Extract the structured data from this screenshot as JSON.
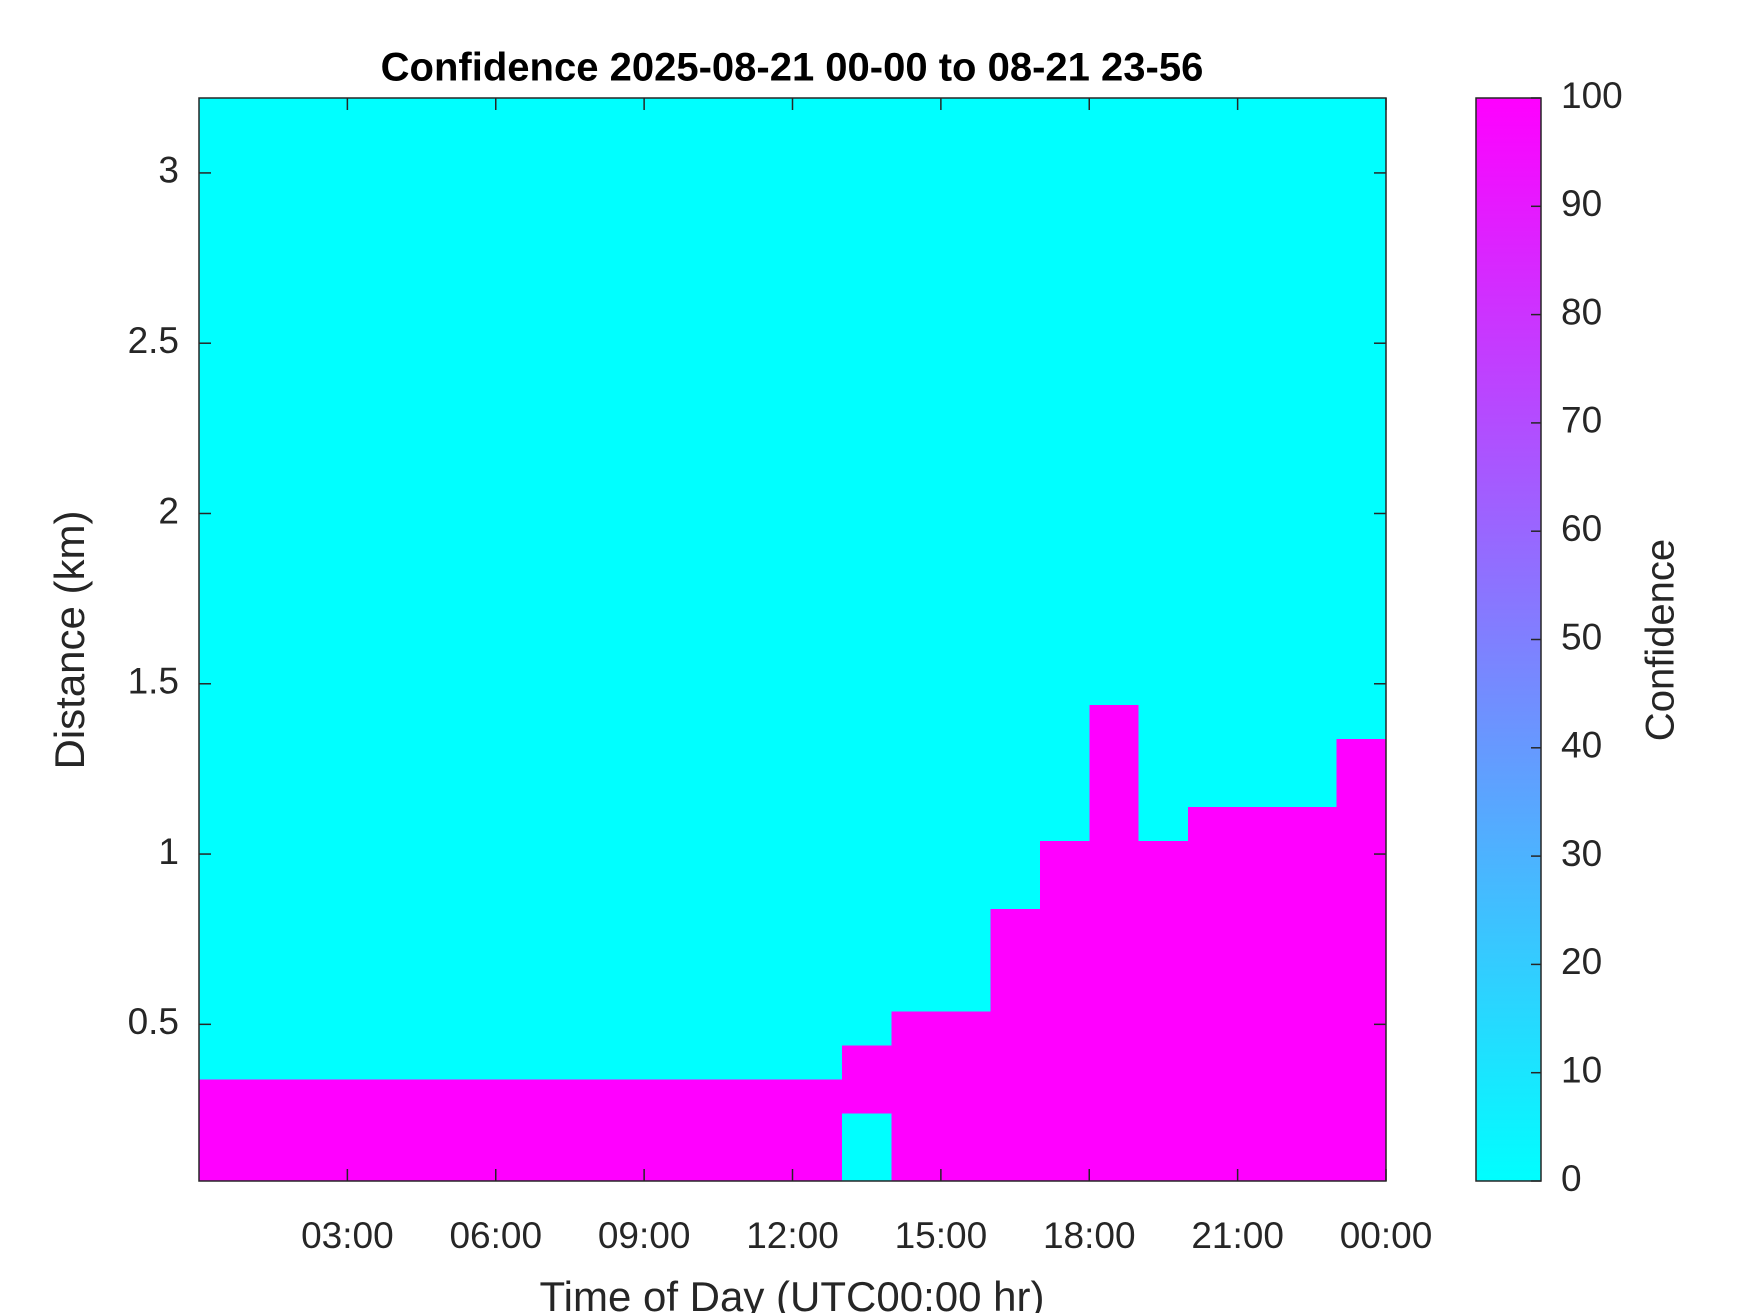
{
  "chart_data": {
    "type": "heatmap",
    "title": "Confidence 2025-08-21 00-00 to 08-21 23-56",
    "xlabel": "Time of Day (UTC00:00 hr)",
    "ylabel": "Distance (km)",
    "colorbar_label": "Confidence",
    "colormap": [
      "#00ffff",
      "#ff00ff"
    ],
    "zlim": [
      0,
      100
    ],
    "zticks": [
      0,
      10,
      20,
      30,
      40,
      50,
      60,
      70,
      80,
      90,
      100
    ],
    "xlim": [
      0,
      24
    ],
    "xticks": [
      {
        "value": 3,
        "label": "03:00"
      },
      {
        "value": 6,
        "label": "06:00"
      },
      {
        "value": 9,
        "label": "09:00"
      },
      {
        "value": 12,
        "label": "12:00"
      },
      {
        "value": 15,
        "label": "15:00"
      },
      {
        "value": 18,
        "label": "18:00"
      },
      {
        "value": 21,
        "label": "21:00"
      },
      {
        "value": 24,
        "label": "00:00"
      }
    ],
    "ylim": [
      0.04,
      3.22
    ],
    "yticks": [
      0.5,
      1,
      1.5,
      2,
      2.5,
      3
    ],
    "x": [
      0.5,
      1.5,
      2.5,
      3.5,
      4.5,
      5.5,
      6.5,
      7.5,
      8.5,
      9.5,
      10.5,
      11.5,
      12.5,
      13.5,
      14.5,
      15.5,
      16.5,
      17.5,
      18.5,
      19.5,
      20.5,
      21.5,
      22.5,
      23.5
    ],
    "y": [
      0.09,
      0.19,
      0.29,
      0.39,
      0.49,
      0.59,
      0.69,
      0.79,
      0.89,
      0.99,
      1.09,
      1.19,
      1.29,
      1.39,
      1.49,
      1.59,
      1.69,
      1.79,
      1.89,
      1.99,
      2.09,
      2.19,
      2.29,
      2.39,
      2.49,
      2.59,
      2.69,
      2.79,
      2.89,
      2.99,
      3.09,
      3.19
    ],
    "values": [
      [
        100,
        100,
        100,
        100,
        100,
        100,
        100,
        100,
        100,
        100,
        100,
        100,
        100,
        0,
        100,
        100,
        100,
        100,
        100,
        100,
        100,
        100,
        100,
        100
      ],
      [
        100,
        100,
        100,
        100,
        100,
        100,
        100,
        100,
        100,
        100,
        100,
        100,
        100,
        0,
        100,
        100,
        100,
        100,
        100,
        100,
        100,
        100,
        100,
        100
      ],
      [
        100,
        100,
        100,
        100,
        100,
        100,
        100,
        100,
        100,
        100,
        100,
        100,
        100,
        100,
        100,
        100,
        100,
        100,
        100,
        100,
        100,
        100,
        100,
        100
      ],
      [
        0,
        0,
        0,
        0,
        0,
        0,
        0,
        0,
        0,
        0,
        0,
        0,
        0,
        100,
        100,
        100,
        100,
        100,
        100,
        100,
        100,
        100,
        100,
        100
      ],
      [
        0,
        0,
        0,
        0,
        0,
        0,
        0,
        0,
        0,
        0,
        0,
        0,
        0,
        0,
        100,
        100,
        100,
        100,
        100,
        100,
        100,
        100,
        100,
        100
      ],
      [
        0,
        0,
        0,
        0,
        0,
        0,
        0,
        0,
        0,
        0,
        0,
        0,
        0,
        0,
        0,
        0,
        100,
        100,
        100,
        100,
        100,
        100,
        100,
        100
      ],
      [
        0,
        0,
        0,
        0,
        0,
        0,
        0,
        0,
        0,
        0,
        0,
        0,
        0,
        0,
        0,
        0,
        100,
        100,
        100,
        100,
        100,
        100,
        100,
        100
      ],
      [
        0,
        0,
        0,
        0,
        0,
        0,
        0,
        0,
        0,
        0,
        0,
        0,
        0,
        0,
        0,
        0,
        100,
        100,
        100,
        100,
        100,
        100,
        100,
        100
      ],
      [
        0,
        0,
        0,
        0,
        0,
        0,
        0,
        0,
        0,
        0,
        0,
        0,
        0,
        0,
        0,
        0,
        0,
        100,
        100,
        100,
        100,
        100,
        100,
        100
      ],
      [
        0,
        0,
        0,
        0,
        0,
        0,
        0,
        0,
        0,
        0,
        0,
        0,
        0,
        0,
        0,
        0,
        0,
        100,
        100,
        100,
        100,
        100,
        100,
        100
      ],
      [
        0,
        0,
        0,
        0,
        0,
        0,
        0,
        0,
        0,
        0,
        0,
        0,
        0,
        0,
        0,
        0,
        0,
        0,
        100,
        0,
        100,
        100,
        100,
        100
      ],
      [
        0,
        0,
        0,
        0,
        0,
        0,
        0,
        0,
        0,
        0,
        0,
        0,
        0,
        0,
        0,
        0,
        0,
        0,
        100,
        0,
        0,
        0,
        0,
        100
      ],
      [
        0,
        0,
        0,
        0,
        0,
        0,
        0,
        0,
        0,
        0,
        0,
        0,
        0,
        0,
        0,
        0,
        0,
        0,
        100,
        0,
        0,
        0,
        0,
        100
      ],
      [
        0,
        0,
        0,
        0,
        0,
        0,
        0,
        0,
        0,
        0,
        0,
        0,
        0,
        0,
        0,
        0,
        0,
        0,
        100,
        0,
        0,
        0,
        0,
        0
      ],
      [
        0,
        0,
        0,
        0,
        0,
        0,
        0,
        0,
        0,
        0,
        0,
        0,
        0,
        0,
        0,
        0,
        0,
        0,
        0,
        0,
        0,
        0,
        0,
        0
      ],
      [
        0,
        0,
        0,
        0,
        0,
        0,
        0,
        0,
        0,
        0,
        0,
        0,
        0,
        0,
        0,
        0,
        0,
        0,
        0,
        0,
        0,
        0,
        0,
        0
      ],
      [
        0,
        0,
        0,
        0,
        0,
        0,
        0,
        0,
        0,
        0,
        0,
        0,
        0,
        0,
        0,
        0,
        0,
        0,
        0,
        0,
        0,
        0,
        0,
        0
      ],
      [
        0,
        0,
        0,
        0,
        0,
        0,
        0,
        0,
        0,
        0,
        0,
        0,
        0,
        0,
        0,
        0,
        0,
        0,
        0,
        0,
        0,
        0,
        0,
        0
      ],
      [
        0,
        0,
        0,
        0,
        0,
        0,
        0,
        0,
        0,
        0,
        0,
        0,
        0,
        0,
        0,
        0,
        0,
        0,
        0,
        0,
        0,
        0,
        0,
        0
      ],
      [
        0,
        0,
        0,
        0,
        0,
        0,
        0,
        0,
        0,
        0,
        0,
        0,
        0,
        0,
        0,
        0,
        0,
        0,
        0,
        0,
        0,
        0,
        0,
        0
      ],
      [
        0,
        0,
        0,
        0,
        0,
        0,
        0,
        0,
        0,
        0,
        0,
        0,
        0,
        0,
        0,
        0,
        0,
        0,
        0,
        0,
        0,
        0,
        0,
        0
      ],
      [
        0,
        0,
        0,
        0,
        0,
        0,
        0,
        0,
        0,
        0,
        0,
        0,
        0,
        0,
        0,
        0,
        0,
        0,
        0,
        0,
        0,
        0,
        0,
        0
      ],
      [
        0,
        0,
        0,
        0,
        0,
        0,
        0,
        0,
        0,
        0,
        0,
        0,
        0,
        0,
        0,
        0,
        0,
        0,
        0,
        0,
        0,
        0,
        0,
        0
      ],
      [
        0,
        0,
        0,
        0,
        0,
        0,
        0,
        0,
        0,
        0,
        0,
        0,
        0,
        0,
        0,
        0,
        0,
        0,
        0,
        0,
        0,
        0,
        0,
        0
      ],
      [
        0,
        0,
        0,
        0,
        0,
        0,
        0,
        0,
        0,
        0,
        0,
        0,
        0,
        0,
        0,
        0,
        0,
        0,
        0,
        0,
        0,
        0,
        0,
        0
      ],
      [
        0,
        0,
        0,
        0,
        0,
        0,
        0,
        0,
        0,
        0,
        0,
        0,
        0,
        0,
        0,
        0,
        0,
        0,
        0,
        0,
        0,
        0,
        0,
        0
      ],
      [
        0,
        0,
        0,
        0,
        0,
        0,
        0,
        0,
        0,
        0,
        0,
        0,
        0,
        0,
        0,
        0,
        0,
        0,
        0,
        0,
        0,
        0,
        0,
        0
      ],
      [
        0,
        0,
        0,
        0,
        0,
        0,
        0,
        0,
        0,
        0,
        0,
        0,
        0,
        0,
        0,
        0,
        0,
        0,
        0,
        0,
        0,
        0,
        0,
        0
      ],
      [
        0,
        0,
        0,
        0,
        0,
        0,
        0,
        0,
        0,
        0,
        0,
        0,
        0,
        0,
        0,
        0,
        0,
        0,
        0,
        0,
        0,
        0,
        0,
        0
      ],
      [
        0,
        0,
        0,
        0,
        0,
        0,
        0,
        0,
        0,
        0,
        0,
        0,
        0,
        0,
        0,
        0,
        0,
        0,
        0,
        0,
        0,
        0,
        0,
        0
      ],
      [
        0,
        0,
        0,
        0,
        0,
        0,
        0,
        0,
        0,
        0,
        0,
        0,
        0,
        0,
        0,
        0,
        0,
        0,
        0,
        0,
        0,
        0,
        0,
        0
      ],
      [
        0,
        0,
        0,
        0,
        0,
        0,
        0,
        0,
        0,
        0,
        0,
        0,
        0,
        0,
        0,
        0,
        0,
        0,
        0,
        0,
        0,
        0,
        0,
        0
      ]
    ]
  }
}
